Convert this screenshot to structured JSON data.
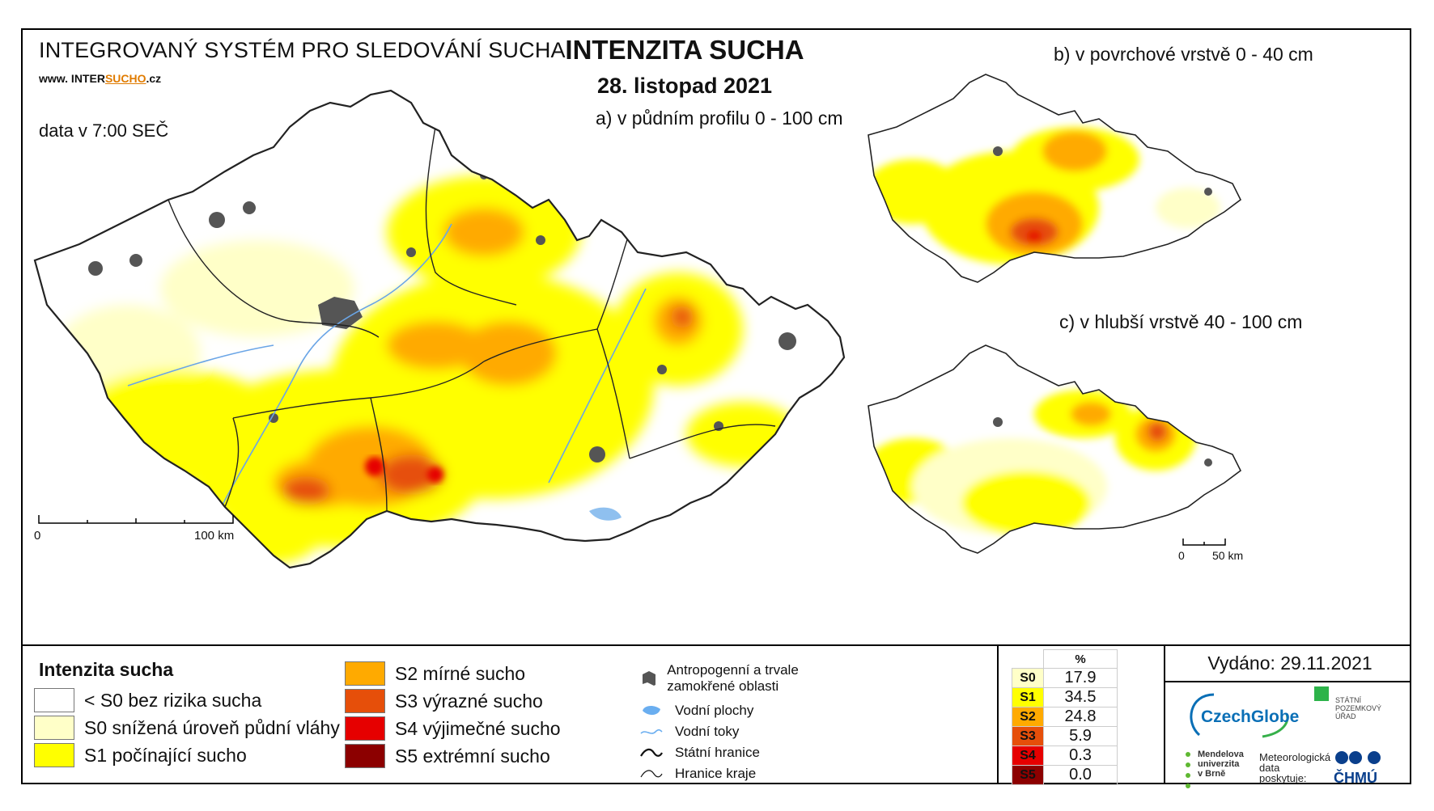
{
  "header": {
    "system_title": "INTEGROVANÝ SYSTÉM PRO SLEDOVÁNÍ SUCHA",
    "website_prefix": "www. INTER",
    "website_highlight": "SUCHO",
    "website_suffix": ".cz",
    "data_time": "data v 7:00 SEČ",
    "main_title": "INTENZITA SUCHA",
    "date": "28. listopad 2021"
  },
  "maps": {
    "main_label": "a) v půdním profilu 0 - 100 cm",
    "surface_label": "b) v povrchové vrstvě 0 - 40 cm",
    "deep_label": "c) v hlubší vrstvě 40 - 100 cm",
    "main_scale": {
      "zero": "0",
      "max": "100 km"
    },
    "small_scale": {
      "zero": "0",
      "max": "50 km"
    }
  },
  "legend": {
    "title": "Intenzita sucha",
    "classes": [
      {
        "label": "< S0 bez rizika sucha",
        "color": "#ffffff"
      },
      {
        "label": "S0 snížená úroveň půdní vláhy",
        "color": "#ffffc8"
      },
      {
        "label": "S1 počínající sucho",
        "color": "#ffff00"
      },
      {
        "label": "S2 mírné sucho",
        "color": "#ffaa00"
      },
      {
        "label": "S3 výrazné sucho",
        "color": "#e64f0a"
      },
      {
        "label": "S4 výjimečné sucho",
        "color": "#e60000"
      },
      {
        "label": "S5 extrémní sucho",
        "color": "#8c0000"
      }
    ],
    "symbols": [
      {
        "label": "Antropogenní a trvale zamokřené oblasti",
        "icon": "urban-area-icon"
      },
      {
        "label": "Vodní plochy",
        "icon": "water-body-icon"
      },
      {
        "label": "Vodní toky",
        "icon": "river-icon"
      },
      {
        "label": "Státní hranice",
        "icon": "state-border-icon"
      },
      {
        "label": "Hranice kraje",
        "icon": "region-border-icon"
      }
    ]
  },
  "stats": {
    "unit": "%",
    "rows": [
      {
        "code": "S0",
        "value": "17.9",
        "color": "#ffffc8"
      },
      {
        "code": "S1",
        "value": "34.5",
        "color": "#ffff00"
      },
      {
        "code": "S2",
        "value": "24.8",
        "color": "#ffaa00"
      },
      {
        "code": "S3",
        "value": "5.9",
        "color": "#e64f0a"
      },
      {
        "code": "S4",
        "value": "0.3",
        "color": "#e60000"
      },
      {
        "code": "S5",
        "value": "0.0",
        "color": "#8c0000"
      }
    ]
  },
  "footer": {
    "issued": "Vydáno: 29.11.2021",
    "czechglobe": "CzechGlobe",
    "spu": "STÁTNÍ POZEMKOVÝ ÚŘAD",
    "mendel": "Mendelova univerzita v Brně",
    "meteo": "Meteorologická data poskytuje:",
    "chmu": "ČHMÚ"
  }
}
